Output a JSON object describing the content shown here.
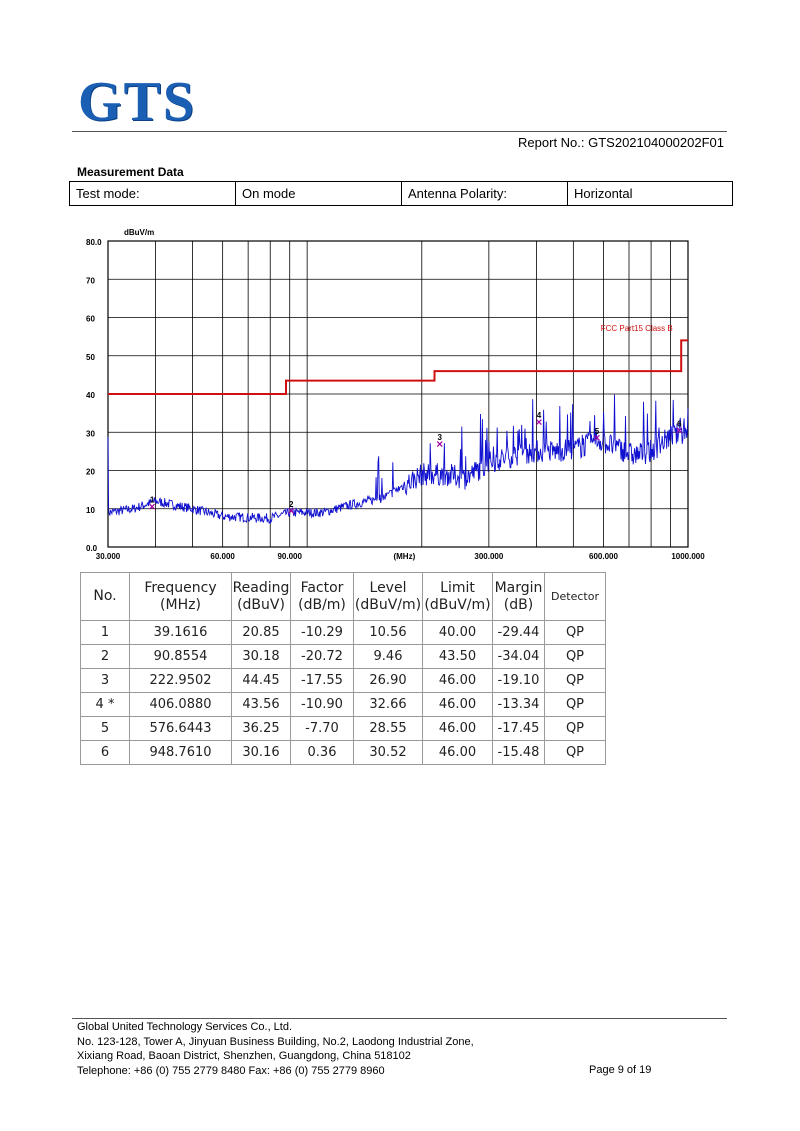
{
  "header": {
    "logo_text": "GTS",
    "report_no": "Report No.: GTS202104000202F01"
  },
  "measurement": {
    "title": "Measurement Data",
    "test_mode_label": "Test mode:",
    "test_mode_value": "On mode",
    "polarity_label": "Antenna Polarity:",
    "polarity_value": "Horizontal"
  },
  "chart_data": {
    "type": "line",
    "y_unit_label": "dBuV/m",
    "x_unit_label": "(MHz)",
    "x_scale": "log",
    "xlim": [
      30,
      1000
    ],
    "ylim": [
      0,
      80
    ],
    "y_ticks": [
      "0.0",
      "10",
      "20",
      "30",
      "40",
      "50",
      "60",
      "70",
      "80.0"
    ],
    "x_ticks": [
      {
        "value": 30,
        "label": "30.000"
      },
      {
        "value": 60,
        "label": "60.000"
      },
      {
        "value": 90,
        "label": "90.000"
      },
      {
        "value": 300,
        "label": "300.000"
      },
      {
        "value": 600,
        "label": "600.000"
      },
      {
        "value": 1000,
        "label": "1000.000"
      }
    ],
    "grid": true,
    "limit_label": "FCC Part15 Class B",
    "limit_line": {
      "x": [
        30,
        88,
        88,
        216,
        216,
        960,
        960,
        1000
      ],
      "y": [
        40,
        40,
        43.5,
        43.5,
        46,
        46,
        54,
        54
      ]
    },
    "markers": [
      {
        "label": "1",
        "freq": 39.1616,
        "level": 10.56
      },
      {
        "label": "2",
        "freq": 90.8554,
        "level": 9.46
      },
      {
        "label": "3",
        "freq": 222.9502,
        "level": 26.9
      },
      {
        "label": "4",
        "freq": 406.088,
        "level": 32.66
      },
      {
        "label": "5",
        "freq": 576.6443,
        "level": 28.55
      },
      {
        "label": "6",
        "freq": 948.761,
        "level": 30.52
      }
    ],
    "trace_envelope": {
      "x": [
        30,
        35,
        40,
        50,
        60,
        80,
        90,
        110,
        130,
        160,
        200,
        230,
        260,
        300,
        350,
        400,
        450,
        520,
        580,
        650,
        720,
        800,
        900,
        1000
      ],
      "y": [
        9,
        10,
        12,
        10,
        8,
        7.5,
        9,
        9,
        11,
        13,
        19,
        19,
        18,
        22,
        24,
        25,
        25,
        26,
        28,
        26,
        24,
        25,
        29,
        30
      ]
    },
    "colors": {
      "trace": "#1010d0",
      "limit": "#d01010",
      "marker": "#a000a0"
    }
  },
  "table": {
    "headers": [
      {
        "l1": "No.",
        "l2": ""
      },
      {
        "l1": "Frequency",
        "l2": "(MHz)"
      },
      {
        "l1": "Reading",
        "l2": "(dBuV)"
      },
      {
        "l1": "Factor",
        "l2": "(dB/m)"
      },
      {
        "l1": "Level",
        "l2": "(dBuV/m)"
      },
      {
        "l1": "Limit",
        "l2": "(dBuV/m)"
      },
      {
        "l1": "Margin",
        "l2": "(dB)"
      },
      {
        "l1": "Detector",
        "l2": ""
      }
    ],
    "rows": [
      [
        "1",
        "39.1616",
        "20.85",
        "-10.29",
        "10.56",
        "40.00",
        "-29.44",
        "QP"
      ],
      [
        "2",
        "90.8554",
        "30.18",
        "-20.72",
        "9.46",
        "43.50",
        "-34.04",
        "QP"
      ],
      [
        "3",
        "222.9502",
        "44.45",
        "-17.55",
        "26.90",
        "46.00",
        "-19.10",
        "QP"
      ],
      [
        "4 *",
        "406.0880",
        "43.56",
        "-10.90",
        "32.66",
        "46.00",
        "-13.34",
        "QP"
      ],
      [
        "5",
        "576.6443",
        "36.25",
        "-7.70",
        "28.55",
        "46.00",
        "-17.45",
        "QP"
      ],
      [
        "6",
        "948.7610",
        "30.16",
        "0.36",
        "30.52",
        "46.00",
        "-15.48",
        "QP"
      ]
    ]
  },
  "footer": {
    "line1": "Global United Technology Services Co., Ltd.",
    "line2": "No. 123-128, Tower A, Jinyuan Business Building, No.2, Laodong Industrial Zone,",
    "line3": "Xixiang Road, Baoan District, Shenzhen, Guangdong, China 518102",
    "line4": "Telephone: +86 (0) 755 2779 8480  Fax: +86 (0) 755 2779 8960",
    "page": "Page 9 of 19"
  }
}
